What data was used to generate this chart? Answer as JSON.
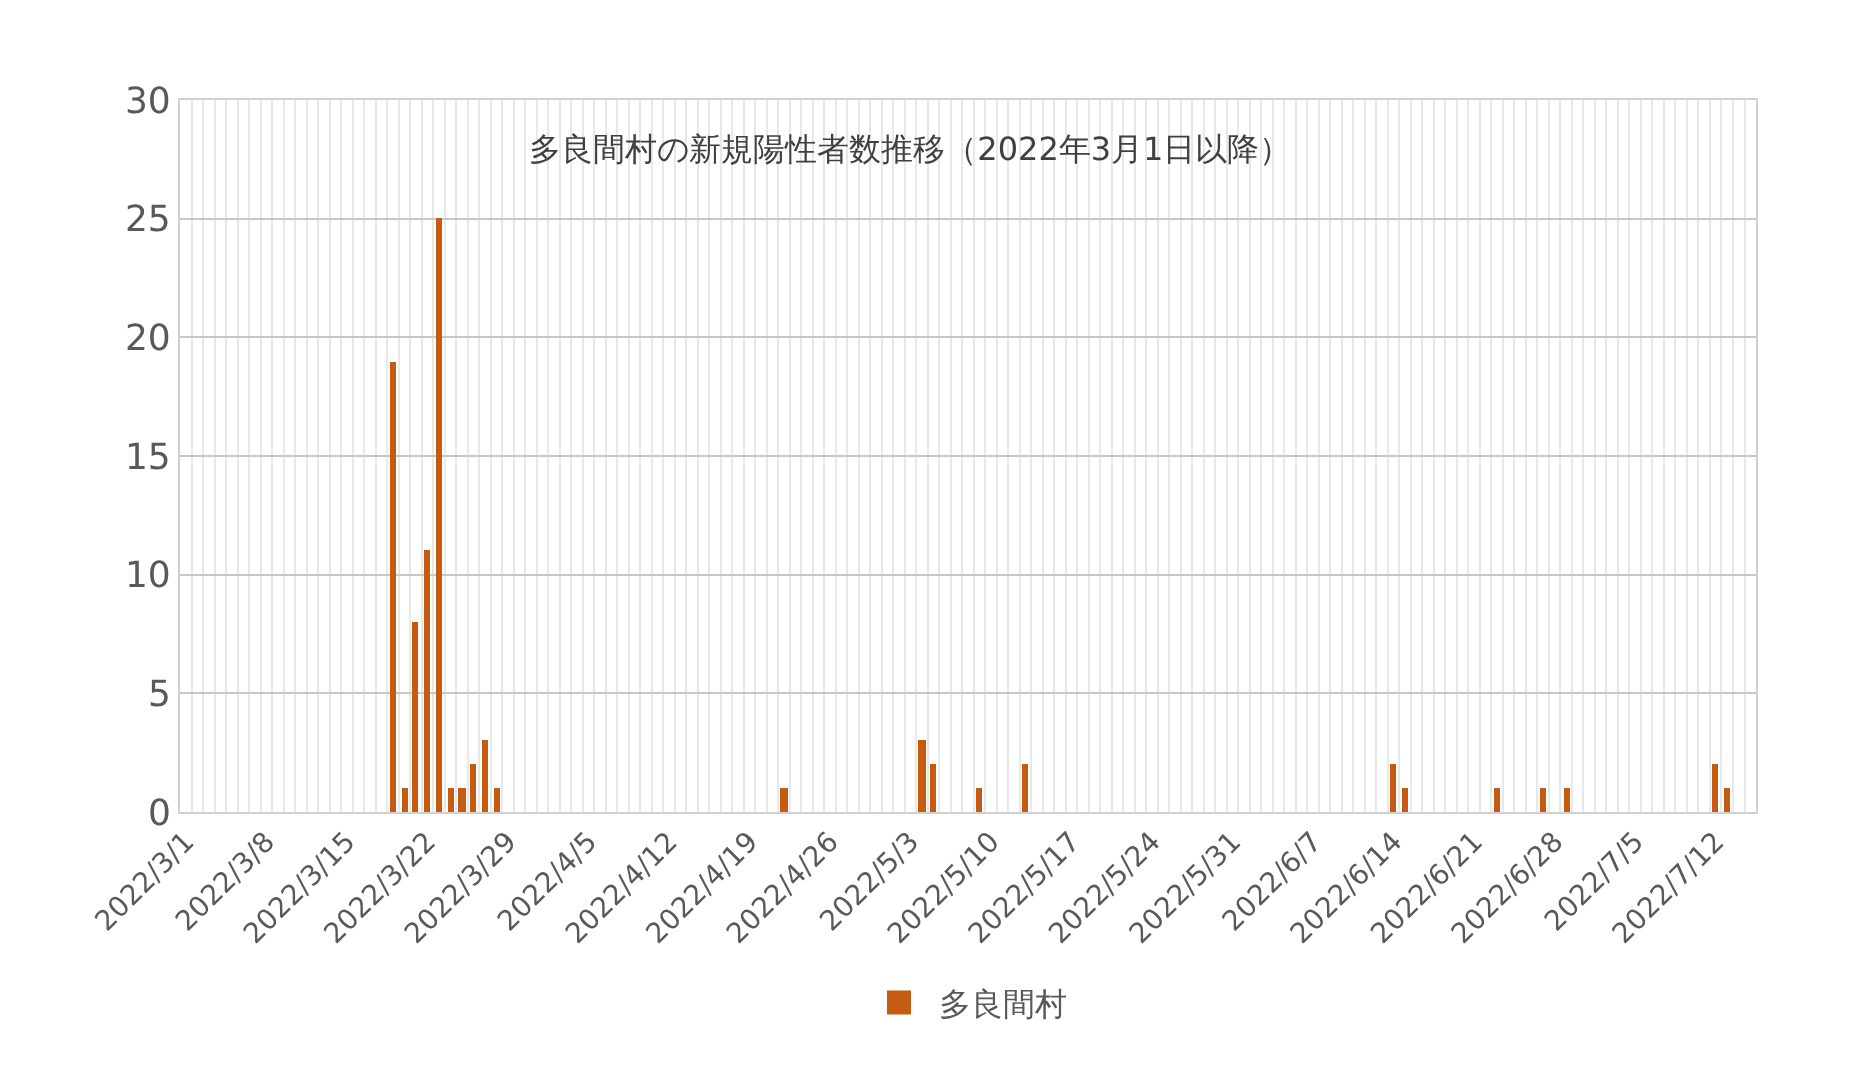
{
  "chart_data": {
    "type": "bar",
    "title": "多良間村の新規陽性者数推移（2022年3月1日以降）",
    "x": [
      "2022-03-19",
      "2022-03-20",
      "2022-03-21",
      "2022-03-22",
      "2022-03-23",
      "2022-03-24",
      "2022-03-25",
      "2022-03-26",
      "2022-03-27",
      "2022-03-28",
      "2022-04-22",
      "2022-05-04",
      "2022-05-05",
      "2022-05-09",
      "2022-05-13",
      "2022-06-14",
      "2022-06-15",
      "2022-06-23",
      "2022-06-27",
      "2022-06-29",
      "2022-07-12",
      "2022-07-13"
    ],
    "series": [
      {
        "name": "多良間村",
        "color": "#c55a11",
        "values": [
          19,
          1,
          8,
          11,
          25,
          1,
          1,
          2,
          3,
          1,
          1,
          3,
          2,
          1,
          2,
          2,
          1,
          1,
          1,
          1,
          2,
          1
        ]
      }
    ],
    "xlim": [
      "2022-02-28T12:00",
      "2022-07-15T12:00"
    ],
    "xticks": [
      {
        "value": "2022-03-01",
        "label": "2022/3/1"
      },
      {
        "value": "2022-03-08",
        "label": "2022/3/8"
      },
      {
        "value": "2022-03-15",
        "label": "2022/3/15"
      },
      {
        "value": "2022-03-22",
        "label": "2022/3/22"
      },
      {
        "value": "2022-03-29",
        "label": "2022/3/29"
      },
      {
        "value": "2022-04-05",
        "label": "2022/4/5"
      },
      {
        "value": "2022-04-12",
        "label": "2022/4/12"
      },
      {
        "value": "2022-04-19",
        "label": "2022/4/19"
      },
      {
        "value": "2022-04-26",
        "label": "2022/4/26"
      },
      {
        "value": "2022-05-03",
        "label": "2022/5/3"
      },
      {
        "value": "2022-05-10",
        "label": "2022/5/10"
      },
      {
        "value": "2022-05-17",
        "label": "2022/5/17"
      },
      {
        "value": "2022-05-24",
        "label": "2022/5/24"
      },
      {
        "value": "2022-05-31",
        "label": "2022/5/31"
      },
      {
        "value": "2022-06-07",
        "label": "2022/6/7"
      },
      {
        "value": "2022-06-14",
        "label": "2022/6/14"
      },
      {
        "value": "2022-06-21",
        "label": "2022/6/21"
      },
      {
        "value": "2022-06-28",
        "label": "2022/6/28"
      },
      {
        "value": "2022-07-05",
        "label": "2022/7/5"
      },
      {
        "value": "2022-07-12",
        "label": "2022/7/12"
      }
    ],
    "ylim": [
      0,
      30
    ],
    "yticks": [
      0,
      5,
      10,
      15,
      20,
      25,
      30
    ],
    "grid": true,
    "legend": "bottom"
  }
}
